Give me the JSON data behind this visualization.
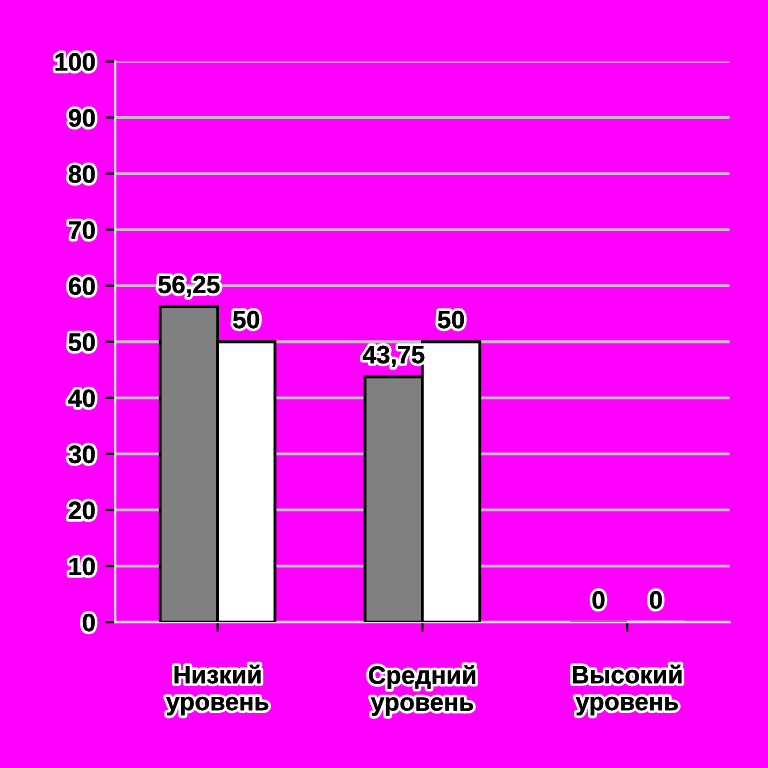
{
  "chart_data": {
    "type": "bar",
    "categories": [
      "Низкий\nуровень",
      "Средний\nуровень",
      "Высокий\nуровень"
    ],
    "series": [
      {
        "color": "#808080",
        "values": [
          56.25,
          43.75,
          0
        ],
        "value_labels": [
          "56,25",
          "43,75",
          "0"
        ]
      },
      {
        "color": "#ffffff",
        "values": [
          50,
          50,
          0
        ],
        "value_labels": [
          "50",
          "50",
          "0"
        ]
      }
    ],
    "ylim": [
      0,
      100
    ],
    "yticks": [
      0,
      10,
      20,
      30,
      40,
      50,
      60,
      70,
      80,
      90,
      100
    ],
    "grid": "y",
    "legend": false
  }
}
